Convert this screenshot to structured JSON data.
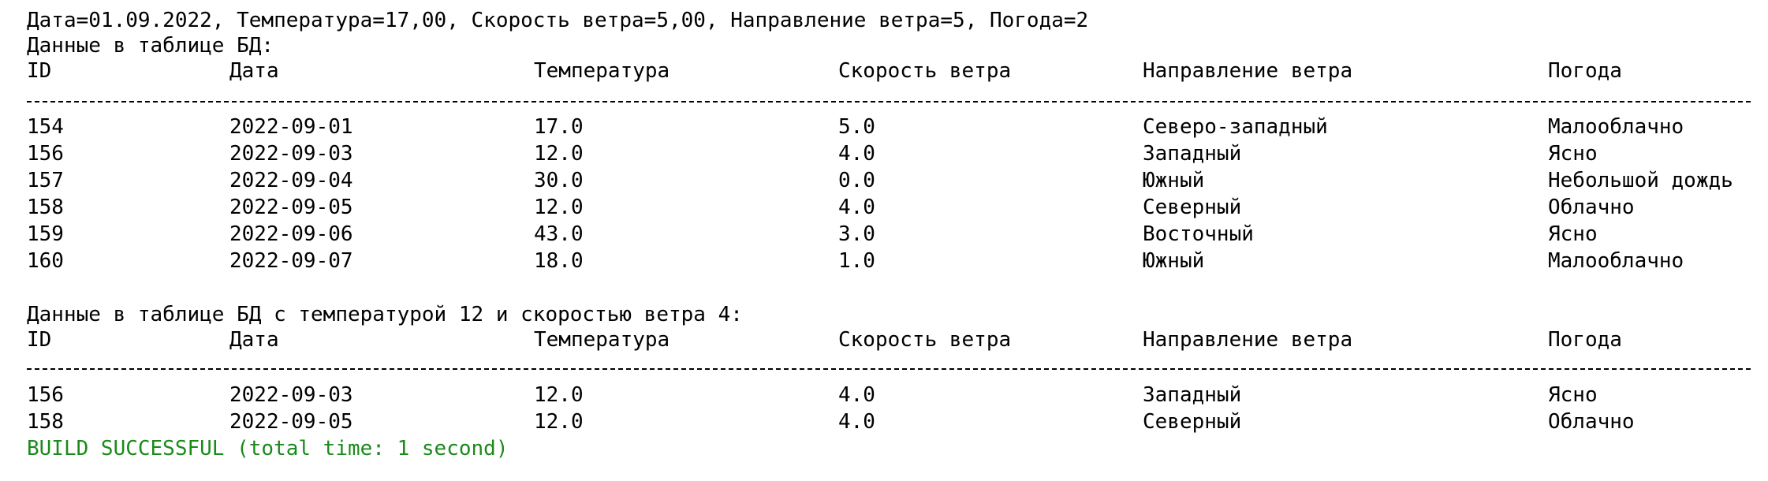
{
  "console": {
    "partial_line": {
      "plain": "",
      "error_fragment": ""
    },
    "insert_line": "Дата=01.09.2022, Температура=17,00, Скорость ветра=5,00, Направление ветра=5, Погода=2",
    "table1_caption": "Данные в таблице БД:",
    "table2_caption": "Данные в таблице БД с температурой 12 и скоростью ветра 4:",
    "headers": [
      "ID",
      "Дата",
      "Температура",
      "Скорость ветра",
      "Направление ветра",
      "Погода"
    ],
    "table1_rows": [
      [
        "154",
        "2022-09-01",
        "17.0",
        "5.0",
        "Северо-западный",
        "Малооблачно"
      ],
      [
        "156",
        "2022-09-03",
        "12.0",
        "4.0",
        "Западный",
        "Ясно"
      ],
      [
        "157",
        "2022-09-04",
        "30.0",
        "0.0",
        "Южный",
        "Небольшой дождь"
      ],
      [
        "158",
        "2022-09-05",
        "12.0",
        "4.0",
        "Северный",
        "Облачно"
      ],
      [
        "159",
        "2022-09-06",
        "43.0",
        "3.0",
        "Восточный",
        "Ясно"
      ],
      [
        "160",
        "2022-09-07",
        "18.0",
        "1.0",
        "Южный",
        "Малооблачно"
      ]
    ],
    "table2_rows": [
      [
        "156",
        "2022-09-03",
        "12.0",
        "4.0",
        "Западный",
        "Ясно"
      ],
      [
        "158",
        "2022-09-05",
        "12.0",
        "4.0",
        "Северный",
        "Облачно"
      ]
    ],
    "build_status": "BUILD SUCCESSFUL (total time: 1 second)",
    "colors": {
      "text": "#000000",
      "error": "#cc0000",
      "success": "#1a8a1a"
    }
  }
}
